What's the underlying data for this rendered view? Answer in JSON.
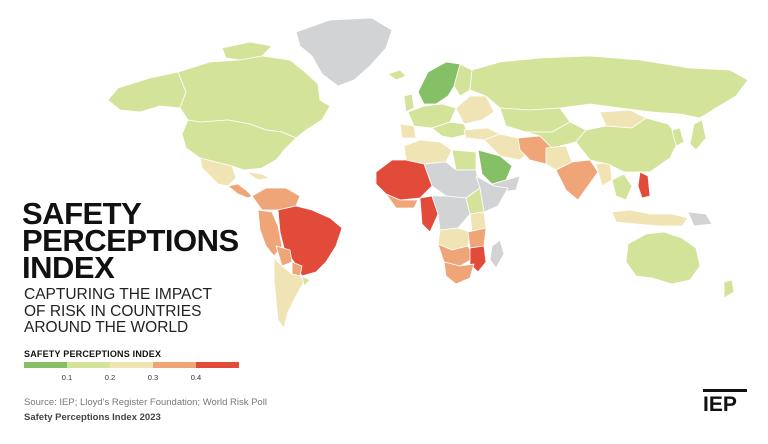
{
  "title_lines": [
    "SAFETY",
    "PERCEPTIONS",
    "INDEX"
  ],
  "subtitle_lines": [
    "CAPTURING THE IMPACT",
    "OF RISK IN COUNTRIES",
    "AROUND THE WORLD"
  ],
  "legend": {
    "title": "SAFETY PERCEPTIONS INDEX",
    "colors": [
      "#86c066",
      "#d4e39a",
      "#f1e4b4",
      "#f0a578",
      "#e24b3a"
    ],
    "ticks": [
      "0.1",
      "0.2",
      "0.3",
      "0.4"
    ]
  },
  "source": "Source: IEP; Lloyd's Register Foundation; World Risk Poll",
  "footer_title": "Safety Perceptions Index 2023",
  "logo": "IEP",
  "map_colors": {
    "no_data": "#d2d3d5",
    "green": "#86c066",
    "lightgreen": "#d4e39a",
    "cream": "#f1e4b4",
    "orange": "#f0a578",
    "red": "#e24b3a",
    "border": "#ffffff"
  }
}
